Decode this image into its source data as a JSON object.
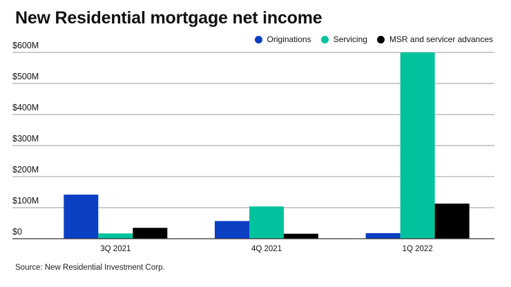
{
  "title": "New Residential mortgage net income",
  "source": "Source: New Residential Investment Corp.",
  "colors": {
    "originations": "#0a3fc4",
    "servicing": "#00c39e",
    "msr": "#000000",
    "gridline": "#999999",
    "baseline": "#333333"
  },
  "chart_data": {
    "type": "bar",
    "title": "New Residential mortgage net income",
    "xlabel": "",
    "ylabel": "",
    "ylim": [
      0,
      600
    ],
    "yticks": [
      0,
      100,
      200,
      300,
      400,
      500,
      600
    ],
    "ytick_labels": [
      "$0",
      "$100M",
      "$200M",
      "$300M",
      "$400M",
      "$500M",
      "$600M"
    ],
    "grid": true,
    "legend_position": "top-right",
    "categories": [
      "3Q 2021",
      "4Q 2021",
      "1Q 2022"
    ],
    "series": [
      {
        "name": "Originations",
        "color_key": "originations",
        "values": [
          142,
          57,
          18
        ]
      },
      {
        "name": "Servicing",
        "color_key": "servicing",
        "values": [
          17,
          104,
          605
        ]
      },
      {
        "name": "MSR and servicer advances",
        "color_key": "msr",
        "values": [
          35,
          16,
          113
        ]
      }
    ]
  }
}
